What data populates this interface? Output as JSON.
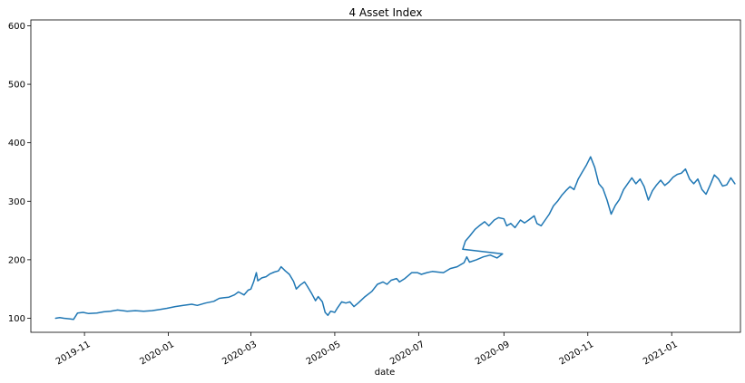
{
  "chart_data": {
    "type": "line",
    "title": "4 Asset Index",
    "xlabel": "date",
    "ylabel": "",
    "ylim": [
      76,
      610
    ],
    "xlim": [
      "2019-09-23",
      "2021-02-20"
    ],
    "grid": false,
    "legend": "none",
    "x_ticks": [
      {
        "date": "2019-11-01",
        "label": "2019-11"
      },
      {
        "date": "2020-01-01",
        "label": "2020-01"
      },
      {
        "date": "2020-03-01",
        "label": "2020-03"
      },
      {
        "date": "2020-05-01",
        "label": "2020-05"
      },
      {
        "date": "2020-07-01",
        "label": "2020-07"
      },
      {
        "date": "2020-09-01",
        "label": "2020-09"
      },
      {
        "date": "2020-11-01",
        "label": "2020-11"
      },
      {
        "date": "2021-01-01",
        "label": "2021-01"
      }
    ],
    "y_ticks": [
      {
        "value": 100,
        "label": "100"
      },
      {
        "value": 200,
        "label": "200"
      },
      {
        "value": 300,
        "label": "300"
      },
      {
        "value": 400,
        "label": "400"
      },
      {
        "value": 500,
        "label": "500"
      },
      {
        "value": 600,
        "label": "600"
      }
    ],
    "series": [
      {
        "color": "#1f77b4",
        "points": [
          [
            "2019-10-11",
            100
          ],
          [
            "2019-10-14",
            101
          ],
          [
            "2019-10-17",
            100
          ],
          [
            "2019-10-21",
            99
          ],
          [
            "2019-10-24",
            98
          ],
          [
            "2019-10-27",
            109
          ],
          [
            "2019-10-31",
            110
          ],
          [
            "2019-11-04",
            108
          ],
          [
            "2019-11-10",
            109
          ],
          [
            "2019-11-15",
            111
          ],
          [
            "2019-11-20",
            112
          ],
          [
            "2019-11-25",
            114
          ],
          [
            "2019-11-29",
            113
          ],
          [
            "2019-12-02",
            112
          ],
          [
            "2019-12-08",
            113
          ],
          [
            "2019-12-14",
            112
          ],
          [
            "2019-12-20",
            113
          ],
          [
            "2019-12-26",
            115
          ],
          [
            "2019-12-31",
            117
          ],
          [
            "2020-01-06",
            120
          ],
          [
            "2020-01-12",
            122
          ],
          [
            "2020-01-18",
            124
          ],
          [
            "2020-01-22",
            122
          ],
          [
            "2020-01-28",
            126
          ],
          [
            "2020-02-03",
            129
          ],
          [
            "2020-02-07",
            134
          ],
          [
            "2020-02-10",
            135
          ],
          [
            "2020-02-14",
            136
          ],
          [
            "2020-02-18",
            140
          ],
          [
            "2020-02-21",
            145
          ],
          [
            "2020-02-25",
            140
          ],
          [
            "2020-02-28",
            148
          ],
          [
            "2020-03-01",
            150
          ],
          [
            "2020-03-03",
            162
          ],
          [
            "2020-03-05",
            178
          ],
          [
            "2020-03-06",
            164
          ],
          [
            "2020-03-09",
            169
          ],
          [
            "2020-03-12",
            171
          ],
          [
            "2020-03-15",
            176
          ],
          [
            "2020-03-18",
            179
          ],
          [
            "2020-03-21",
            181
          ],
          [
            "2020-03-23",
            188
          ],
          [
            "2020-03-26",
            181
          ],
          [
            "2020-03-29",
            175
          ],
          [
            "2020-04-01",
            163
          ],
          [
            "2020-04-03",
            150
          ],
          [
            "2020-04-06",
            157
          ],
          [
            "2020-04-09",
            162
          ],
          [
            "2020-04-11",
            155
          ],
          [
            "2020-04-14",
            143
          ],
          [
            "2020-04-17",
            130
          ],
          [
            "2020-04-19",
            137
          ],
          [
            "2020-04-22",
            128
          ],
          [
            "2020-04-24",
            110
          ],
          [
            "2020-04-26",
            105
          ],
          [
            "2020-04-28",
            112
          ],
          [
            "2020-05-01",
            110
          ],
          [
            "2020-05-03",
            118
          ],
          [
            "2020-05-06",
            128
          ],
          [
            "2020-05-09",
            126
          ],
          [
            "2020-05-12",
            128
          ],
          [
            "2020-05-15",
            120
          ],
          [
            "2020-05-18",
            126
          ],
          [
            "2020-05-23",
            137
          ],
          [
            "2020-05-28",
            146
          ],
          [
            "2020-06-01",
            158
          ],
          [
            "2020-06-05",
            162
          ],
          [
            "2020-06-08",
            158
          ],
          [
            "2020-06-11",
            165
          ],
          [
            "2020-06-15",
            168
          ],
          [
            "2020-06-17",
            162
          ],
          [
            "2020-06-21",
            168
          ],
          [
            "2020-06-26",
            178
          ],
          [
            "2020-06-30",
            178
          ],
          [
            "2020-07-03",
            175
          ],
          [
            "2020-07-07",
            178
          ],
          [
            "2020-07-11",
            180
          ],
          [
            "2020-07-15",
            179
          ],
          [
            "2020-07-19",
            178
          ],
          [
            "2020-07-24",
            185
          ],
          [
            "2020-07-29",
            188
          ],
          [
            "2020-08-03",
            195
          ],
          [
            "2020-08-05",
            205
          ],
          [
            "2020-08-07",
            196
          ],
          [
            "2020-08-12",
            200
          ],
          [
            "2020-08-17",
            205
          ],
          [
            "2020-08-22",
            208
          ],
          [
            "2020-08-27",
            203
          ],
          [
            "2020-08-31",
            210
          ],
          [
            "2020-08-02",
            218
          ],
          [
            "2020-08-04",
            232
          ],
          [
            "2020-08-07",
            240
          ],
          [
            "2020-08-11",
            252
          ],
          [
            "2020-08-14",
            258
          ],
          [
            "2020-08-18",
            265
          ],
          [
            "2020-08-21",
            258
          ],
          [
            "2020-08-25",
            268
          ],
          [
            "2020-08-28",
            272
          ],
          [
            "2020-09-01",
            270
          ],
          [
            "2020-09-03",
            258
          ],
          [
            "2020-09-06",
            262
          ],
          [
            "2020-09-09",
            255
          ],
          [
            "2020-09-13",
            268
          ],
          [
            "2020-09-16",
            263
          ],
          [
            "2020-09-19",
            268
          ],
          [
            "2020-09-23",
            275
          ],
          [
            "2020-09-25",
            262
          ],
          [
            "2020-09-28",
            258
          ],
          [
            "2020-10-01",
            268
          ],
          [
            "2020-10-04",
            278
          ],
          [
            "2020-10-07",
            292
          ],
          [
            "2020-10-10",
            300
          ],
          [
            "2020-10-13",
            310
          ],
          [
            "2020-10-16",
            318
          ],
          [
            "2020-10-19",
            325
          ],
          [
            "2020-10-22",
            320
          ],
          [
            "2020-10-25",
            338
          ],
          [
            "2020-10-28",
            350
          ],
          [
            "2020-10-31",
            362
          ],
          [
            "2020-11-03",
            376
          ],
          [
            "2020-11-06",
            358
          ],
          [
            "2020-11-09",
            330
          ],
          [
            "2020-11-12",
            322
          ],
          [
            "2020-11-15",
            302
          ],
          [
            "2020-11-18",
            278
          ],
          [
            "2020-11-21",
            293
          ],
          [
            "2020-11-24",
            303
          ],
          [
            "2020-11-27",
            320
          ],
          [
            "2020-11-30",
            330
          ],
          [
            "2020-12-03",
            340
          ],
          [
            "2020-12-06",
            330
          ],
          [
            "2020-12-09",
            338
          ],
          [
            "2020-12-12",
            325
          ],
          [
            "2020-12-15",
            302
          ],
          [
            "2020-12-18",
            318
          ],
          [
            "2020-12-21",
            328
          ],
          [
            "2020-12-24",
            336
          ],
          [
            "2020-12-27",
            327
          ],
          [
            "2020-12-30",
            333
          ],
          [
            "2021-01-02",
            341
          ],
          [
            "2021-01-05",
            346
          ],
          [
            "2021-01-08",
            348
          ],
          [
            "2021-01-11",
            355
          ],
          [
            "2021-01-14",
            338
          ],
          [
            "2021-01-17",
            330
          ],
          [
            "2021-01-20",
            338
          ],
          [
            "2021-01-23",
            320
          ],
          [
            "2021-01-26",
            312
          ],
          [
            "2021-01-29",
            328
          ],
          [
            "2021-02-01",
            345
          ],
          [
            "2021-02-04",
            338
          ],
          [
            "2021-02-07",
            326
          ],
          [
            "2021-02-10",
            328
          ],
          [
            "2021-02-13",
            340
          ],
          [
            "2021-02-16",
            330
          ]
        ]
      }
    ]
  }
}
